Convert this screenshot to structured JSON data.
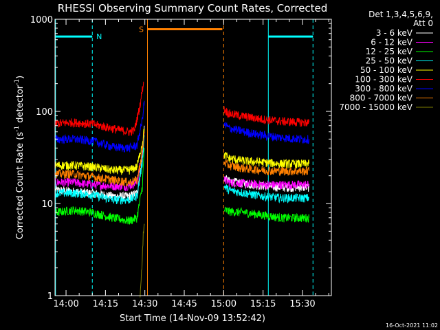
{
  "chart_data": {
    "type": "line",
    "title": "RHESSI Observing Summary Count Rates, Corrected",
    "xlabel": "Start Time (14-Nov-09 13:52:42)",
    "ylabel_parts": [
      "Corrected Count Rate (s",
      "-1",
      " detector",
      "-1",
      ")"
    ],
    "y_scale": "log",
    "ylim": [
      1,
      1000
    ],
    "xlim_minutes": [
      -4.2,
      101
    ],
    "x_ticks": [
      {
        "label": "14:00",
        "min": 0
      },
      {
        "label": "14:15",
        "min": 15
      },
      {
        "label": "14:30",
        "min": 30
      },
      {
        "label": "14:45",
        "min": 45
      },
      {
        "label": "15:00",
        "min": 60
      },
      {
        "label": "15:15",
        "min": 75
      },
      {
        "label": "15:30",
        "min": 90
      }
    ],
    "y_ticks": [
      {
        "label": "1",
        "value": 1
      },
      {
        "label": "10",
        "value": 10
      },
      {
        "label": "100",
        "value": 100
      },
      {
        "label": "1000",
        "value": 1000
      }
    ],
    "legend_header": [
      "Det 1,3,4,5,6,9,",
      "Att 0"
    ],
    "series": [
      {
        "name": "3 - 6 keV",
        "color": "#ffffff",
        "segments": [
          {
            "x": [
              -4,
              3,
              10,
              18,
              24,
              27,
              29,
              29.8
            ],
            "y": [
              14,
              13.5,
              13,
              12,
              12,
              13,
              30,
              70
            ]
          },
          {
            "x": [
              60.2,
              62,
              68,
              75,
              82,
              90,
              92.5
            ],
            "y": [
              19,
              17.5,
              16.5,
              15.5,
              15,
              15,
              15
            ]
          }
        ]
      },
      {
        "name": "6 - 12 keV",
        "color": "#ff00ff",
        "segments": [
          {
            "x": [
              -4,
              3,
              10,
              18,
              24,
              27,
              29,
              29.8
            ],
            "y": [
              17,
              17,
              16,
              15.5,
              15.5,
              17,
              35,
              60
            ]
          },
          {
            "x": [
              60.2,
              62,
              68,
              75,
              82,
              90,
              92.5
            ],
            "y": [
              18,
              17,
              16.5,
              16,
              16,
              16,
              16
            ]
          }
        ]
      },
      {
        "name": "12 - 25 keV",
        "color": "#00ff00",
        "segments": [
          {
            "x": [
              -4,
              3,
              10,
              18,
              24,
              27,
              29,
              29.8
            ],
            "y": [
              8,
              8.5,
              8,
              7,
              6.5,
              7,
              15,
              40
            ]
          },
          {
            "x": [
              60.2,
              62,
              68,
              75,
              82,
              90,
              92.5
            ],
            "y": [
              8.5,
              8.2,
              8,
              7.5,
              7,
              7,
              7
            ]
          }
        ]
      },
      {
        "name": "25 - 50 keV",
        "color": "#00ffff",
        "segments": [
          {
            "x": [
              -4,
              3,
              10,
              18,
              24,
              27,
              29,
              29.8
            ],
            "y": [
              13,
              13,
              12.5,
              11,
              11,
              12,
              28,
              55
            ]
          },
          {
            "x": [
              60.2,
              62,
              68,
              75,
              82,
              90,
              92.5
            ],
            "y": [
              15.5,
              14,
              13,
              12,
              11.5,
              11.5,
              11.5
            ]
          }
        ]
      },
      {
        "name": "50 - 100 keV",
        "color": "#ffff00",
        "segments": [
          {
            "x": [
              -4,
              3,
              10,
              18,
              24,
              27,
              29,
              29.8
            ],
            "y": [
              26,
              26,
              25,
              23,
              23,
              25,
              45,
              65
            ]
          },
          {
            "x": [
              60.2,
              62,
              68,
              75,
              82,
              90,
              92.5
            ],
            "y": [
              34,
              31,
              29,
              28,
              27,
              27,
              27
            ]
          }
        ]
      },
      {
        "name": "100 - 300 keV",
        "color": "#ff0000",
        "segments": [
          {
            "x": [
              -4,
              3,
              10,
              18,
              24,
              26,
              28,
              29.5
            ],
            "y": [
              74,
              76,
              73,
              65,
              60,
              62,
              110,
              210
            ]
          },
          {
            "x": [
              60.2,
              62,
              68,
              75,
              82,
              90,
              92.5
            ],
            "y": [
              105,
              95,
              88,
              82,
              78,
              76,
              76
            ]
          }
        ]
      },
      {
        "name": "300 - 800 keV",
        "color": "#0000ff",
        "segments": [
          {
            "x": [
              -4,
              3,
              10,
              18,
              24,
              27,
              29,
              29.8
            ],
            "y": [
              50,
              50,
              48,
              41,
              40,
              43,
              80,
              130
            ]
          },
          {
            "x": [
              60.2,
              62,
              68,
              75,
              82,
              90,
              92.5
            ],
            "y": [
              72,
              66,
              60,
              55,
              52,
              50,
              50
            ]
          }
        ]
      },
      {
        "name": "800 - 7000 keV",
        "color": "#ff8000",
        "segments": [
          {
            "x": [
              -4,
              3,
              10,
              18,
              24,
              27,
              29,
              29.8
            ],
            "y": [
              21,
              21,
              19.5,
              18,
              17,
              18,
              35,
              60
            ]
          },
          {
            "x": [
              60.2,
              62,
              68,
              75,
              82,
              90,
              92.5
            ],
            "y": [
              28,
              26,
              24,
              23,
              22.5,
              22.5,
              22.5
            ]
          }
        ]
      },
      {
        "name": "7000 - 15000 keV",
        "color": "#808000",
        "segments": [
          {
            "x": [
              28.2,
              28.6,
              29,
              29.4,
              29.8
            ],
            "y": [
              1,
              1.6,
              2.5,
              4.5,
              6
            ]
          }
        ]
      }
    ],
    "annotations": [
      {
        "label": "N",
        "color": "#00ffff",
        "y": 650,
        "bars": [
          [
            -4,
            10
          ],
          [
            77,
            94
          ]
        ],
        "solid_lines": [
          -4,
          77
        ],
        "dashed_lines": [
          10,
          94
        ]
      },
      {
        "label": "S",
        "color": "#ff8000",
        "y": 780,
        "bars": [
          [
            31,
            59.5
          ]
        ],
        "solid_lines": [
          31
        ],
        "dashed_lines": [
          60
        ]
      }
    ],
    "grid": false,
    "legend_placement": "right"
  },
  "footer": {
    "timestamp": "16-Oct-2021 11:02"
  }
}
